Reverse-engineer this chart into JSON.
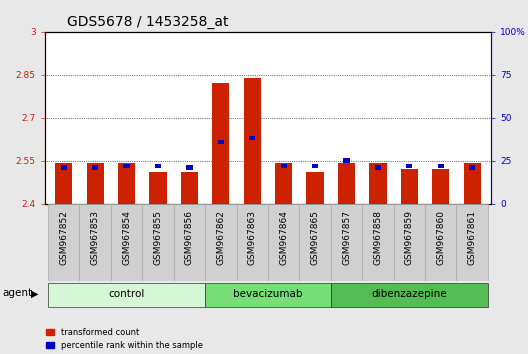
{
  "title": "GDS5678 / 1453258_at",
  "samples": [
    "GSM967852",
    "GSM967853",
    "GSM967854",
    "GSM967855",
    "GSM967856",
    "GSM967862",
    "GSM967863",
    "GSM967864",
    "GSM967865",
    "GSM967857",
    "GSM967858",
    "GSM967859",
    "GSM967860",
    "GSM967861"
  ],
  "red_values": [
    2.54,
    2.54,
    2.54,
    2.51,
    2.51,
    2.82,
    2.84,
    2.54,
    2.51,
    2.54,
    2.54,
    2.52,
    2.52,
    2.54
  ],
  "blue_values": [
    21,
    21,
    22,
    22,
    21,
    36,
    38,
    22,
    22,
    25,
    21,
    22,
    22,
    21
  ],
  "ylim_left": [
    2.4,
    3.0
  ],
  "ylim_right": [
    0,
    100
  ],
  "yticks_left": [
    2.4,
    2.55,
    2.7,
    2.85,
    3.0
  ],
  "ytick_labels_left": [
    "2.4",
    "2.55",
    "2.7",
    "2.85",
    "3"
  ],
  "yticks_right": [
    0,
    25,
    50,
    75,
    100
  ],
  "ytick_labels_right": [
    "0",
    "25",
    "50",
    "75",
    "100%"
  ],
  "groups": [
    {
      "name": "control",
      "start": 0,
      "end": 5,
      "color": "#d4f7d4"
    },
    {
      "name": "bevacizumab",
      "start": 5,
      "end": 9,
      "color": "#77dd77"
    },
    {
      "name": "dibenzazepine",
      "start": 9,
      "end": 14,
      "color": "#55bb55"
    }
  ],
  "bar_color_red": "#cc2200",
  "bar_color_blue": "#0000cc",
  "bar_width": 0.55,
  "blue_bar_width": 0.2,
  "blue_bar_height": 2.5,
  "agent_label": "agent",
  "legend_red": "transformed count",
  "legend_blue": "percentile rank within the sample",
  "background_color": "#e8e8e8",
  "plot_bg_color": "#ffffff",
  "xtick_bg_color": "#d0d0d0",
  "title_fontsize": 10,
  "tick_fontsize": 6.5,
  "label_fontsize": 7.5
}
